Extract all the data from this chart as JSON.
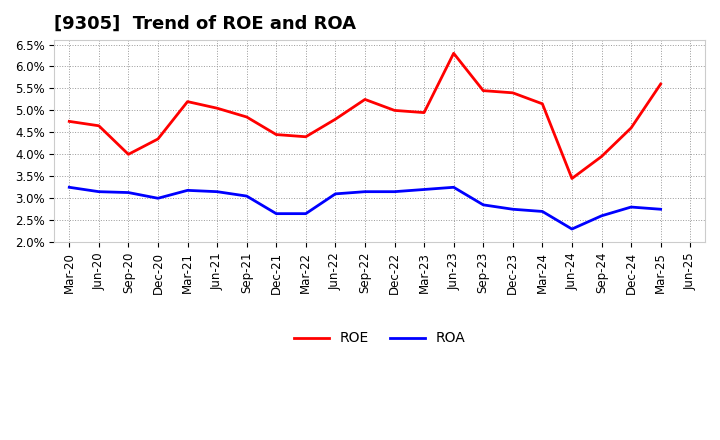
{
  "title": "[9305]  Trend of ROE and ROA",
  "x_labels": [
    "Mar-20",
    "Jun-20",
    "Sep-20",
    "Dec-20",
    "Mar-21",
    "Jun-21",
    "Sep-21",
    "Dec-21",
    "Mar-22",
    "Jun-22",
    "Sep-22",
    "Dec-22",
    "Mar-23",
    "Jun-23",
    "Sep-23",
    "Dec-23",
    "Mar-24",
    "Jun-24",
    "Sep-24",
    "Dec-24",
    "Mar-25",
    "Jun-25"
  ],
  "roe": [
    4.75,
    4.65,
    4.0,
    4.35,
    5.2,
    5.05,
    4.85,
    4.45,
    4.4,
    4.8,
    5.25,
    5.0,
    4.95,
    6.3,
    5.45,
    5.4,
    5.15,
    3.45,
    3.95,
    4.6,
    5.6,
    null
  ],
  "roa": [
    3.25,
    3.15,
    3.13,
    3.0,
    3.18,
    3.15,
    3.05,
    2.65,
    2.65,
    3.1,
    3.15,
    3.15,
    3.2,
    3.25,
    2.85,
    2.75,
    2.7,
    2.3,
    2.6,
    2.8,
    2.75,
    null
  ],
  "roe_color": "#ff0000",
  "roa_color": "#0000ff",
  "ylim": [
    2.0,
    6.6
  ],
  "yticks": [
    2.0,
    2.5,
    3.0,
    3.5,
    4.0,
    4.5,
    5.0,
    5.5,
    6.0,
    6.5
  ],
  "bg_color": "#ffffff",
  "plot_bg_color": "#ffffff",
  "grid_color": "#999999",
  "line_width": 2.0,
  "title_fontsize": 13,
  "tick_fontsize": 8.5,
  "legend_fontsize": 10
}
